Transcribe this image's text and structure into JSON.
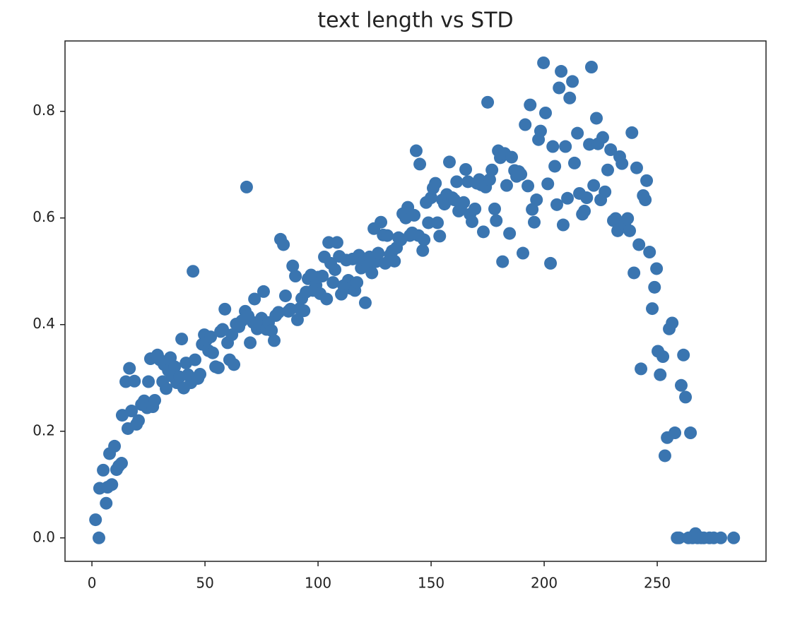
{
  "chart_data": {
    "type": "scatter",
    "title": "text length vs STD",
    "color": "#3a75b0",
    "xlim": [
      -11.9,
      298.1
    ],
    "ylim": [
      -0.044,
      0.932
    ],
    "xticks": [
      0,
      50,
      100,
      150,
      200,
      250
    ],
    "yticks": [
      {
        "value": 0,
        "label": "0.0"
      },
      0.2,
      0.4,
      0.6,
      0.8
    ],
    "x": [
      1.6,
      3.1,
      3.4,
      5,
      6.3,
      6.9,
      7.8,
      8.8,
      10,
      10.9,
      11.9,
      13.1,
      13.4,
      15,
      15.9,
      16.6,
      17.5,
      18.8,
      19.7,
      20.6,
      21.9,
      23.1,
      24.4,
      25,
      25.9,
      26.9,
      27.8,
      29,
      30,
      31.3,
      31.9,
      32.8,
      33.8,
      34.7,
      35.6,
      36.6,
      37.5,
      38.8,
      39.7,
      40.6,
      41.6,
      42.5,
      43.8,
      44.7,
      45.6,
      46.9,
      47.8,
      48.8,
      49.7,
      50.6,
      51.6,
      52.5,
      53.4,
      54.7,
      55.9,
      56.9,
      57.8,
      58.8,
      60,
      60.9,
      61.9,
      62.8,
      63.8,
      65,
      66.3,
      67.8,
      68.4,
      69.1,
      70,
      71.3,
      71.9,
      73.1,
      74.1,
      75,
      75.9,
      77.2,
      78.1,
      79.4,
      80.6,
      81.3,
      82.5,
      83.4,
      84.7,
      85.6,
      86.9,
      87.8,
      88.8,
      90,
      90.9,
      91.9,
      92.8,
      93.8,
      94.7,
      95.6,
      96.9,
      97.8,
      99.1,
      100,
      100.9,
      101.9,
      102.8,
      103.8,
      104.7,
      105.6,
      106.6,
      107.5,
      108.4,
      109.4,
      110.3,
      111.3,
      112.5,
      113.4,
      114.4,
      115.3,
      116.3,
      117.2,
      118.1,
      119.1,
      120,
      120.9,
      121.9,
      122.8,
      123.8,
      124.7,
      125.6,
      126.6,
      127.8,
      128.8,
      129.7,
      130.6,
      131.9,
      132.8,
      133.8,
      134.7,
      135.6,
      136.6,
      137.5,
      138.8,
      139.7,
      140.6,
      141.6,
      142.5,
      143.4,
      144.4,
      145,
      146.3,
      146.9,
      147.8,
      148.8,
      150,
      150.9,
      151.9,
      152.8,
      153.8,
      155,
      155.9,
      156.9,
      158.1,
      159.4,
      160.3,
      161.3,
      162.2,
      163.1,
      164.4,
      165.3,
      166.3,
      167.2,
      168.1,
      169.4,
      170.3,
      171.3,
      172.2,
      173.1,
      174.1,
      175,
      175.9,
      176.9,
      178.1,
      178.8,
      179.7,
      180.6,
      181.6,
      182.5,
      183.4,
      184.7,
      185.6,
      186.9,
      187.8,
      188.8,
      189.7,
      190.6,
      191.6,
      192.8,
      193.8,
      194.7,
      195.6,
      196.6,
      197.5,
      198.4,
      199.7,
      200.6,
      201.6,
      202.8,
      203.8,
      204.7,
      205.6,
      206.6,
      207.5,
      208.4,
      209.4,
      210.3,
      211.3,
      212.5,
      213.4,
      214.7,
      215.6,
      216.9,
      217.8,
      218.8,
      220,
      220.9,
      221.9,
      223.1,
      223.8,
      225,
      225.9,
      226.9,
      228.1,
      229.4,
      230.6,
      231.6,
      232.5,
      233.4,
      234.4,
      235.6,
      236.9,
      237.8,
      238.8,
      239.7,
      240.9,
      241.9,
      242.8,
      243.8,
      244.7,
      245.3,
      246.6,
      247.8,
      248.8,
      249.7,
      250.3,
      251.3,
      252.5,
      253.4,
      254.4,
      255.3,
      256.6,
      257.8,
      258.8,
      259.7,
      260.6,
      261.6,
      262.5,
      263.8,
      264.7,
      265.6,
      266.9,
      267.8,
      269.4,
      270.6,
      273.1,
      275,
      278.1,
      283.8
    ],
    "values": [
      0.034,
      0,
      0.093,
      0.127,
      0.065,
      0.095,
      0.158,
      0.1,
      0.172,
      0.128,
      0.135,
      0.14,
      0.23,
      0.293,
      0.205,
      0.318,
      0.238,
      0.294,
      0.213,
      0.22,
      0.25,
      0.257,
      0.244,
      0.293,
      0.336,
      0.246,
      0.258,
      0.343,
      0.334,
      0.293,
      0.325,
      0.28,
      0.314,
      0.338,
      0.303,
      0.321,
      0.291,
      0.302,
      0.373,
      0.281,
      0.328,
      0.306,
      0.291,
      0.5,
      0.334,
      0.299,
      0.307,
      0.363,
      0.381,
      0.371,
      0.351,
      0.377,
      0.347,
      0.321,
      0.319,
      0.387,
      0.391,
      0.429,
      0.366,
      0.334,
      0.381,
      0.325,
      0.401,
      0.396,
      0.407,
      0.425,
      0.658,
      0.416,
      0.366,
      0.404,
      0.448,
      0.392,
      0.401,
      0.412,
      0.462,
      0.391,
      0.404,
      0.389,
      0.37,
      0.417,
      0.423,
      0.56,
      0.55,
      0.454,
      0.425,
      0.429,
      0.51,
      0.491,
      0.409,
      0.43,
      0.449,
      0.426,
      0.461,
      0.486,
      0.493,
      0.464,
      0.474,
      0.489,
      0.458,
      0.491,
      0.527,
      0.448,
      0.554,
      0.515,
      0.479,
      0.503,
      0.554,
      0.528,
      0.457,
      0.473,
      0.521,
      0.483,
      0.468,
      0.523,
      0.464,
      0.479,
      0.53,
      0.506,
      0.518,
      0.441,
      0.511,
      0.527,
      0.497,
      0.58,
      0.518,
      0.534,
      0.592,
      0.568,
      0.515,
      0.567,
      0.531,
      0.538,
      0.519,
      0.544,
      0.563,
      0.559,
      0.608,
      0.6,
      0.62,
      0.567,
      0.572,
      0.605,
      0.726,
      0.567,
      0.701,
      0.539,
      0.559,
      0.629,
      0.591,
      0.638,
      0.656,
      0.665,
      0.591,
      0.566,
      0.634,
      0.626,
      0.644,
      0.705,
      0.638,
      0.634,
      0.668,
      0.613,
      0.62,
      0.629,
      0.691,
      0.668,
      0.607,
      0.593,
      0.617,
      0.665,
      0.672,
      0.662,
      0.574,
      0.658,
      0.817,
      0.672,
      0.69,
      0.617,
      0.595,
      0.726,
      0.713,
      0.518,
      0.721,
      0.661,
      0.571,
      0.714,
      0.689,
      0.678,
      0.687,
      0.682,
      0.534,
      0.775,
      0.66,
      0.812,
      0.616,
      0.592,
      0.634,
      0.747,
      0.763,
      0.891,
      0.797,
      0.664,
      0.515,
      0.734,
      0.697,
      0.625,
      0.844,
      0.875,
      0.587,
      0.734,
      0.637,
      0.825,
      0.856,
      0.703,
      0.759,
      0.646,
      0.607,
      0.613,
      0.638,
      0.738,
      0.883,
      0.661,
      0.787,
      0.739,
      0.634,
      0.751,
      0.649,
      0.69,
      0.728,
      0.595,
      0.599,
      0.576,
      0.715,
      0.702,
      0.588,
      0.599,
      0.576,
      0.76,
      0.497,
      0.694,
      0.55,
      0.317,
      0.642,
      0.634,
      0.67,
      0.536,
      0.43,
      0.47,
      0.505,
      0.35,
      0.306,
      0.34,
      0.154,
      0.188,
      0.392,
      0.403,
      0.197,
      0,
      0,
      0.286,
      0.343,
      0.264,
      0,
      0.197,
      0,
      0.008,
      0,
      0,
      0,
      0,
      0,
      0,
      0
    ]
  }
}
